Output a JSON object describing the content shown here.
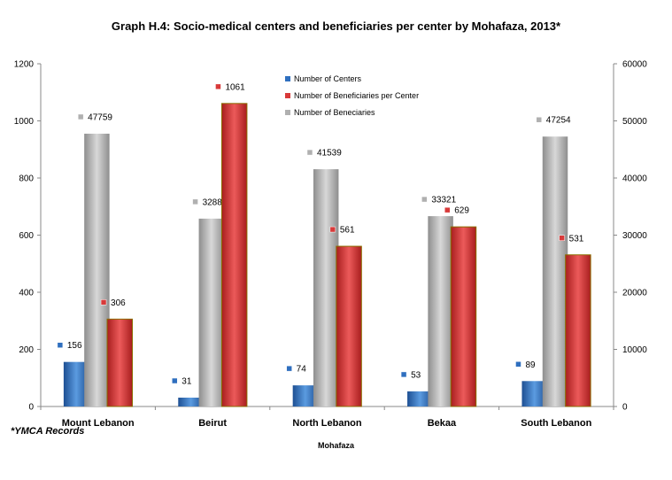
{
  "chart_data": {
    "type": "bar",
    "title": "Graph H.4: Socio-medical centers and  beneficiaries per center by Mohafaza, 2013*",
    "xlabel": "Mohafaza",
    "ylabel": "",
    "note": "*YMCA Records",
    "categories": [
      "Mount Lebanon",
      "Beirut",
      "North Lebanon",
      "Bekaa",
      "South Lebanon"
    ],
    "ylim": [
      0,
      1200
    ],
    "yticks": [
      "0",
      "200",
      "400",
      "600",
      "800",
      "1000",
      "1200"
    ],
    "y2lim": [
      0,
      60000
    ],
    "y2ticks": [
      "0",
      "10000",
      "20000",
      "30000",
      "40000",
      "50000",
      "60000"
    ],
    "legend_position": "top-center",
    "series": [
      {
        "name": "Number of Centers",
        "axis": "left",
        "color": "#2f6fbf",
        "values": [
          156,
          31,
          74,
          53,
          89
        ]
      },
      {
        "name": "Number of Beneficiaries per Center",
        "axis": "left",
        "color": "#d83a3a",
        "values": [
          306,
          1061,
          561,
          629,
          531
        ]
      },
      {
        "name": "Number of Beneciaries",
        "axis": "right",
        "color": "#b0b0b0",
        "values": [
          47759,
          32888,
          41539,
          33321,
          47254
        ]
      }
    ]
  }
}
